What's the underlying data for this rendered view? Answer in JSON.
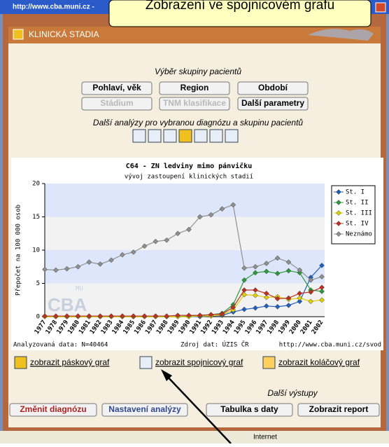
{
  "window": {
    "url": "http://www.cba.muni.cz -",
    "status": "Internet"
  },
  "callout": "Zobrazení ve spojnicovém grafu",
  "header": {
    "title": "KLINICKÁ STADIA"
  },
  "patient_group": {
    "title": "Výběr skupiny pacientů",
    "buttons": [
      {
        "label": "Pohlaví, věk",
        "enabled": true
      },
      {
        "label": "Region",
        "enabled": true
      },
      {
        "label": "Období",
        "enabled": true
      },
      {
        "label": "Stádium",
        "enabled": false
      },
      {
        "label": "TNM klasifikace",
        "enabled": false
      },
      {
        "label": "Další parametry",
        "enabled": true
      }
    ]
  },
  "analyses": {
    "title": "Další analýzy pro vybranou diagnózu a skupinu pacientů"
  },
  "chart_data": {
    "type": "line",
    "title": "C64 - ZN ledviny mimo pánvičku",
    "subtitle": "vývoj zastoupení klinických stadií",
    "y_label": "Přepočet na 100 000 osob",
    "watermark": [
      "MU",
      "CBA"
    ],
    "categories": [
      "1977",
      "1978",
      "1979",
      "1980",
      "1981",
      "1982",
      "1983",
      "1984",
      "1985",
      "1986",
      "1987",
      "1988",
      "1989",
      "1990",
      "1991",
      "1992",
      "1993",
      "1994",
      "1995",
      "1996",
      "1997",
      "1998",
      "1999",
      "2000",
      "2001",
      "2002"
    ],
    "ylim": [
      0,
      20
    ],
    "yticks": [
      0,
      5,
      10,
      15,
      20
    ],
    "grid": true,
    "legend": "upper right",
    "series": [
      {
        "name": "St. I",
        "color": "#1f5fc0",
        "values": [
          0,
          0,
          0,
          0,
          0,
          0,
          0,
          0,
          0,
          0,
          0,
          0,
          0,
          0,
          0,
          0.1,
          0.2,
          0.7,
          1.1,
          1.3,
          1.6,
          1.5,
          1.7,
          2.3,
          5.9,
          7.7
        ]
      },
      {
        "name": "St. II",
        "color": "#2a9a3a",
        "values": [
          0,
          0,
          0,
          0,
          0,
          0,
          0,
          0,
          0,
          0,
          0,
          0,
          0,
          0.1,
          0.2,
          0.3,
          0.5,
          1.8,
          5.5,
          6.6,
          6.8,
          6.5,
          6.9,
          6.6,
          4.0,
          3.8
        ]
      },
      {
        "name": "St. III",
        "color": "#e0d000",
        "values": [
          0,
          0,
          0,
          0,
          0,
          0,
          0,
          0,
          0,
          0,
          0,
          0,
          0,
          0,
          0.1,
          0.1,
          0.3,
          1.0,
          3.3,
          3.2,
          2.9,
          3.0,
          2.6,
          2.8,
          2.3,
          2.5
        ]
      },
      {
        "name": "St. IV",
        "color": "#c03020",
        "values": [
          0.1,
          0.1,
          0.1,
          0.1,
          0.1,
          0.1,
          0.1,
          0.1,
          0.1,
          0.1,
          0.1,
          0.1,
          0.2,
          0.2,
          0.2,
          0.3,
          0.4,
          1.4,
          4.0,
          4.0,
          3.5,
          2.7,
          2.8,
          3.5,
          3.7,
          4.4
        ]
      },
      {
        "name": "Neznámo",
        "color": "#909090",
        "values": [
          7.1,
          7.0,
          7.2,
          7.5,
          8.2,
          7.9,
          8.5,
          9.3,
          9.7,
          10.6,
          11.3,
          11.5,
          12.5,
          13.1,
          15.0,
          15.3,
          16.2,
          16.8,
          7.3,
          7.5,
          8.0,
          8.8,
          8.2,
          7.0,
          5.5,
          6.0
        ]
      }
    ],
    "footer": [
      "Analyzovaná data: N=40464",
      "Zdroj dat: ÚZIS ČR",
      "http://www.cba.muni.cz/svod"
    ]
  },
  "links": [
    "zobrazit páskový graf",
    "zobrazit spojnicový graf",
    "zobrazit koláčový graf"
  ],
  "outputs": {
    "title": "Další výstupy",
    "buttons": [
      "Změnit diagnózu",
      "Nastavení analýzy",
      "Tabulka s daty",
      "Zobrazit report"
    ]
  }
}
